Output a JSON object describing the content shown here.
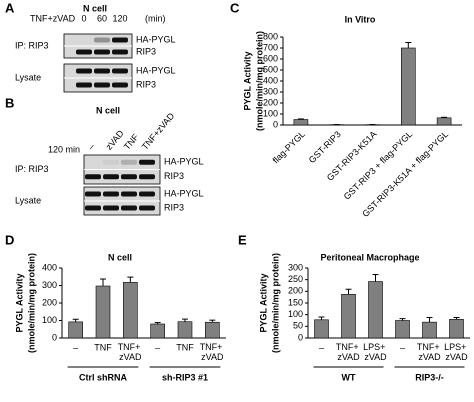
{
  "blots": [
    {
      "panel": "A",
      "cell": "N cell",
      "treatment": "TNF+zVAD",
      "lanes": [
        "0",
        "60",
        "120"
      ],
      "lane_unit": "(min)",
      "sections": [
        {
          "name": "IP: RIP3",
          "rows": [
            "HA-PYGL",
            "RIP3"
          ]
        },
        {
          "name": "Lysate",
          "rows": [
            "HA-PYGL",
            "RIP3"
          ]
        }
      ]
    },
    {
      "panel": "B",
      "cell": "N cell",
      "treatment": "120 min",
      "lanes": [
        "–",
        "zVAD",
        "TNF",
        "TNF+zVAD"
      ],
      "sections": [
        {
          "name": "IP: RIP3",
          "rows": [
            "HA-PYGL",
            "RIP3"
          ]
        },
        {
          "name": "Lysate",
          "rows": [
            "HA-PYGL",
            "RIP3"
          ]
        }
      ]
    }
  ],
  "chart_data": [
    {
      "type": "bar",
      "panel": "C",
      "title": "In Vitro",
      "ylabel": "PYGL Activity",
      "ylabel_units": "(nmole/min/mg protein)",
      "color": "#808080",
      "categories": [
        "flag-PYGL",
        "GST-RIP3",
        "GST-RIP3-K51A",
        "GST-RIP3 + flag-PYGL",
        "GST-RIP3-K51A + flag-PYGL"
      ],
      "values": [
        50,
        3,
        3,
        700,
        65
      ],
      "errors": [
        5,
        1,
        1,
        50,
        5
      ],
      "ylim": [
        0,
        800
      ],
      "yticks": [
        0,
        100,
        200,
        300,
        400,
        500,
        600,
        700,
        800
      ]
    },
    {
      "type": "bar",
      "panel": "D",
      "title": "N cell",
      "ylabel": "PYGL Activity",
      "ylabel_units": "(nmole/min/mg protein)",
      "color": "#808080",
      "groups": [
        {
          "name": "Ctrl shRNA",
          "categories": [
            "–",
            "TNF",
            "TNF+\nzVAD"
          ],
          "values": [
            92,
            297,
            318
          ],
          "errors": [
            15,
            40,
            30
          ]
        },
        {
          "name": "sh-RIP3 #1",
          "categories": [
            "–",
            "TNF",
            "TNF+\nzVAD"
          ],
          "values": [
            80,
            93,
            90
          ],
          "errors": [
            8,
            15,
            12
          ]
        }
      ],
      "ylim": [
        0,
        400
      ],
      "yticks": [
        0,
        100,
        200,
        300,
        400
      ]
    },
    {
      "type": "bar",
      "panel": "E",
      "title": "Peritoneal Macrophage",
      "ylabel": "PYGL Activity",
      "ylabel_units": "(nmole/min/mg protein)",
      "color": "#808080",
      "groups": [
        {
          "name": "WT",
          "categories": [
            "–",
            "TNF+\nzVAD",
            "LPS+\nzVAD"
          ],
          "values": [
            78,
            187,
            242
          ],
          "errors": [
            12,
            22,
            30
          ]
        },
        {
          "name": "RIP3-/-",
          "categories": [
            "–",
            "TNF+\nzVAD",
            "LPS+\nzVAD"
          ],
          "values": [
            75,
            68,
            80
          ],
          "errors": [
            8,
            20,
            8
          ]
        }
      ],
      "ylim": [
        0,
        300
      ],
      "yticks": [
        0,
        50,
        100,
        150,
        200,
        250,
        300
      ]
    }
  ]
}
